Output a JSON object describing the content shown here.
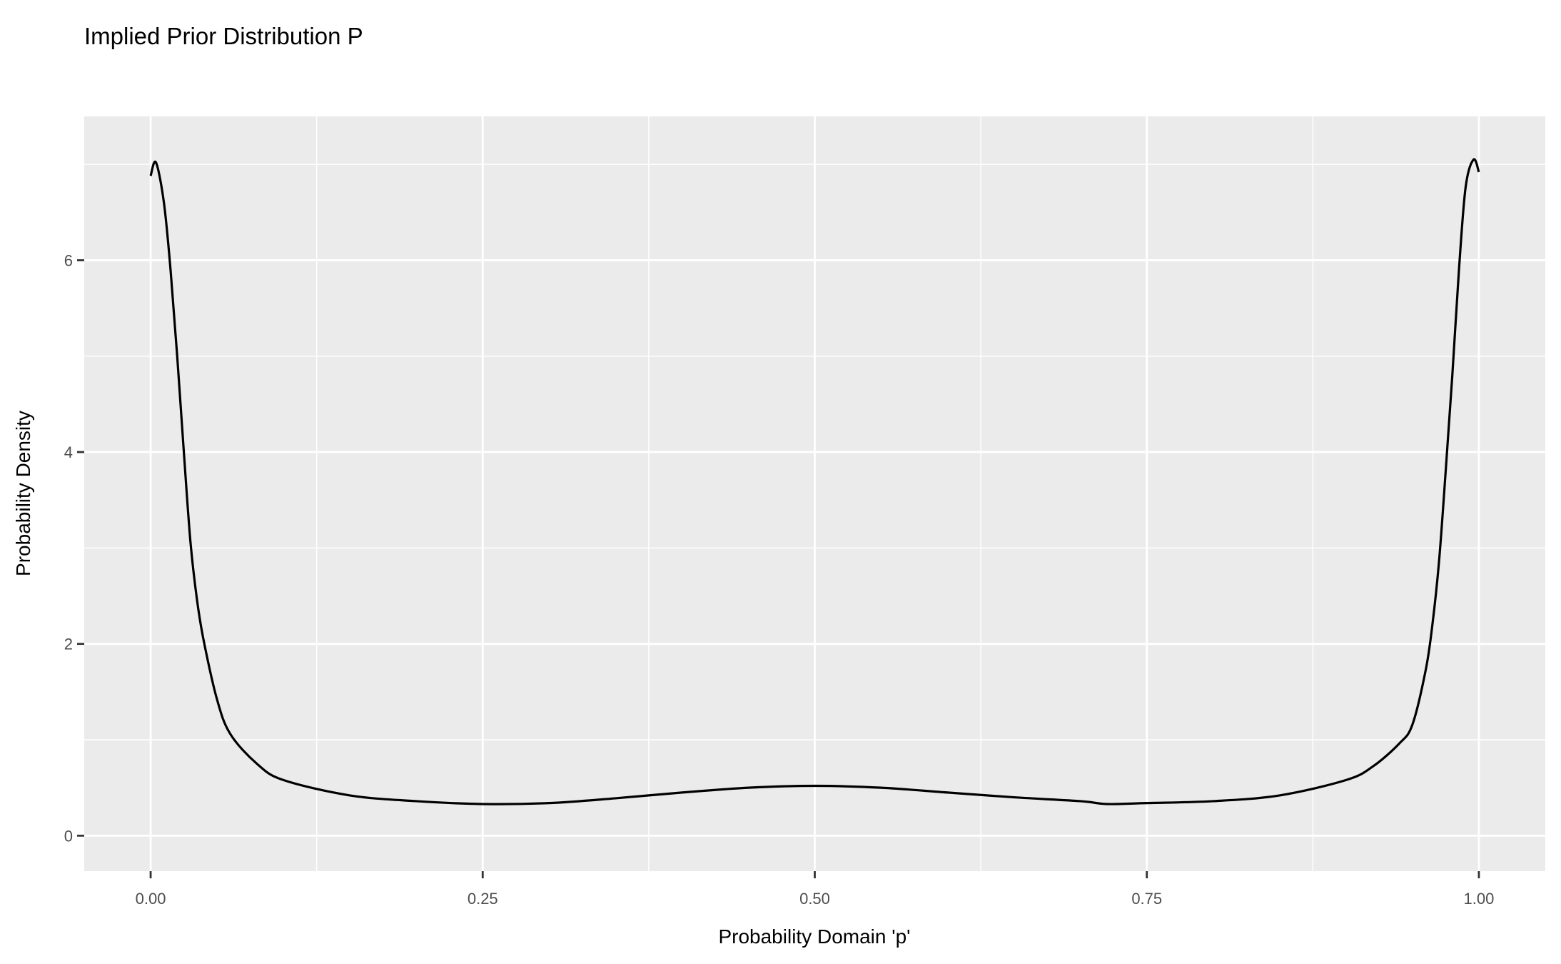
{
  "chart_data": {
    "type": "line",
    "title": "Implied Prior Distribution P",
    "xlabel": "Probability Domain 'p'",
    "ylabel": "Probability Density",
    "xlim": [
      -0.05,
      1.05
    ],
    "ylim": [
      -0.37,
      7.5
    ],
    "xticks": [
      0,
      0.25,
      0.5,
      0.75,
      1
    ],
    "xtick_labels": [
      "0.00",
      "0.25",
      "0.50",
      "0.75",
      "1.00"
    ],
    "yticks": [
      0,
      2,
      4,
      6
    ],
    "ytick_labels": [
      "0",
      "2",
      "4",
      "6"
    ],
    "grid": true,
    "line_color": "#000000",
    "panel_color": "#EBEBEB",
    "x": [
      0,
      0.004,
      0.01,
      0.015,
      0.02,
      0.025,
      0.03,
      0.035,
      0.04,
      0.05,
      0.06,
      0.08,
      0.1,
      0.15,
      0.2,
      0.25,
      0.3,
      0.35,
      0.4,
      0.45,
      0.5,
      0.55,
      0.6,
      0.65,
      0.7,
      0.72,
      0.75,
      0.8,
      0.85,
      0.9,
      0.92,
      0.94,
      0.95,
      0.96,
      0.965,
      0.97,
      0.975,
      0.98,
      0.985,
      0.99,
      0.996,
      1.0
    ],
    "y": [
      6.88,
      7.02,
      6.6,
      5.9,
      5.0,
      4.0,
      3.06,
      2.45,
      2.03,
      1.42,
      1.06,
      0.75,
      0.58,
      0.42,
      0.36,
      0.33,
      0.34,
      0.39,
      0.45,
      0.5,
      0.52,
      0.5,
      0.45,
      0.4,
      0.36,
      0.33,
      0.34,
      0.36,
      0.42,
      0.58,
      0.72,
      0.96,
      1.16,
      1.73,
      2.2,
      2.86,
      3.8,
      4.8,
      5.9,
      6.76,
      7.05,
      6.92
    ]
  }
}
